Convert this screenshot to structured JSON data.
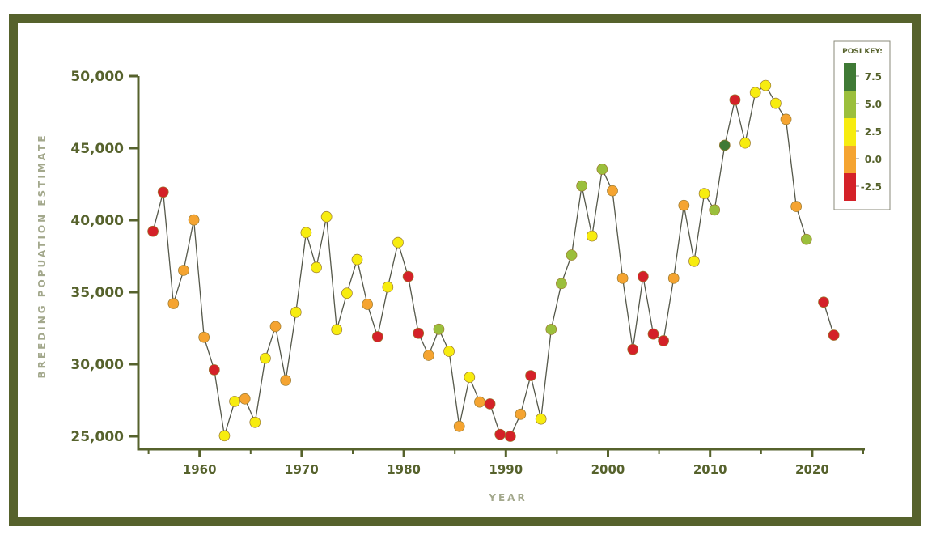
{
  "chart_data": {
    "type": "line",
    "title": "",
    "xlabel": "YEAR",
    "ylabel": "BREEDING POPUATION ESTIMATE",
    "xlim": [
      1955,
      2025
    ],
    "ylim": [
      25000,
      50000
    ],
    "grid": false,
    "x_ticks": [
      "1960",
      "1970",
      "1980",
      "1990",
      "2000",
      "2010",
      "2020"
    ],
    "y_ticks": [
      "25,000",
      "30,000",
      "35,000",
      "40,000",
      "45,000",
      "50,000"
    ],
    "legend": {
      "title": "POSI KEY:",
      "placement": "top-right",
      "bands": [
        {
          "label": "7.5",
          "color": "#3f7a35"
        },
        {
          "label": "5.0",
          "color": "#9bbf3c"
        },
        {
          "label": "2.5",
          "color": "#f7ec0f"
        },
        {
          "label": "0.0",
          "color": "#f5a431"
        },
        {
          "label": "-2.5",
          "color": "#d42128"
        }
      ]
    },
    "series": [
      {
        "segments": [
          {
            "x": [
              1955,
              1956,
              1957,
              1958,
              1959,
              1960,
              1961,
              1962,
              1963,
              1964,
              1965,
              1966,
              1967,
              1968,
              1969,
              1970,
              1971,
              1972,
              1973,
              1974,
              1975,
              1976,
              1977,
              1978,
              1979,
              1980,
              1981,
              1982,
              1983,
              1984,
              1985,
              1986,
              1987,
              1988,
              1989,
              1990,
              1991,
              1992,
              1993,
              1994,
              1995,
              1996,
              1997,
              1998,
              1999,
              2000,
              2001,
              2002,
              2003,
              2004,
              2005,
              2006,
              2007,
              2008,
              2009,
              2010,
              2011,
              2012,
              2013,
              2014,
              2015,
              2016,
              2017,
              2018,
              2019
            ],
            "y": [
              39230,
              41950,
              34210,
              36520,
              40020,
              31870,
              29610,
              25040,
              27420,
              27600,
              25970,
              30410,
              32620,
              28880,
              33610,
              39140,
              36720,
              40240,
              32400,
              34930,
              37270,
              34160,
              31910,
              35360,
              38450,
              36090,
              32150,
              30620,
              32430,
              30900,
              25690,
              29100,
              27380,
              27250,
              25130,
              25000,
              26530,
              29210,
              26200,
              32420,
              35600,
              37580,
              42380,
              38900,
              43540,
              42040,
              35970,
              31030,
              36090,
              32100,
              31630,
              35970,
              41030,
              37150,
              41850,
              40710,
              45200,
              48350,
              45360,
              48860,
              49350,
              48110,
              47000,
              40950,
              38670
            ],
            "posi_key": [
              "-2.5",
              "-2.5",
              "0.0",
              "0.0",
              "0.0",
              "0.0",
              "-2.5",
              "2.5",
              "2.5",
              "0.0",
              "2.5",
              "2.5",
              "0.0",
              "0.0",
              "2.5",
              "2.5",
              "2.5",
              "2.5",
              "2.5",
              "2.5",
              "2.5",
              "0.0",
              "-2.5",
              "2.5",
              "2.5",
              "-2.5",
              "-2.5",
              "0.0",
              "5.0",
              "2.5",
              "0.0",
              "2.5",
              "0.0",
              "-2.5",
              "-2.5",
              "-2.5",
              "0.0",
              "-2.5",
              "2.5",
              "5.0",
              "5.0",
              "5.0",
              "5.0",
              "2.5",
              "5.0",
              "0.0",
              "0.0",
              "-2.5",
              "-2.5",
              "-2.5",
              "-2.5",
              "0.0",
              "0.0",
              "2.5",
              "2.5",
              "5.0",
              "7.5",
              "-2.5",
              "2.5",
              "2.5",
              "2.5",
              "2.5",
              "0.0",
              "0.0",
              "5.0"
            ]
          },
          {
            "x": [
              2021,
              2022
            ],
            "y": [
              34310,
              32020
            ],
            "posi_key": [
              "-2.5",
              "-2.5"
            ]
          }
        ]
      }
    ]
  }
}
